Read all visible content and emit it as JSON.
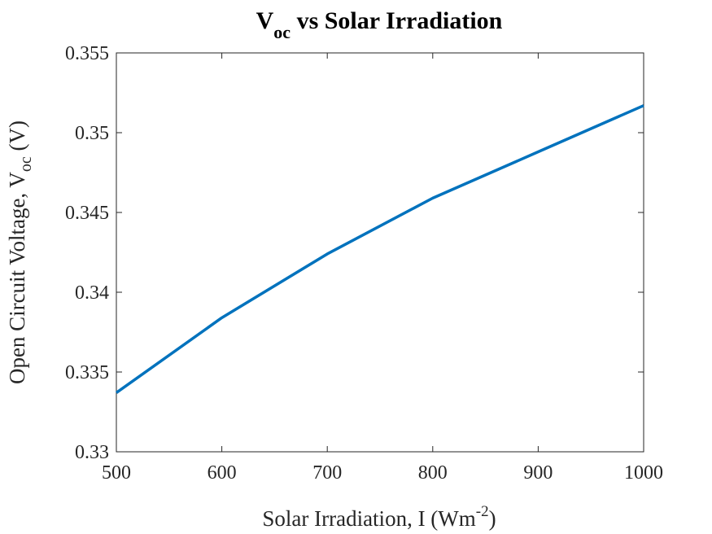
{
  "chart_data": {
    "type": "line",
    "title": {
      "main": "V",
      "subscript": "oc",
      "rest": " vs Solar Irradiation"
    },
    "xlabel": {
      "main": "Solar Irradiation, I (Wm",
      "superscript": "-2",
      "rest": ")"
    },
    "ylabel": {
      "main": "Open Circuit Voltage, V",
      "subscript": "oc",
      "rest": " (V)"
    },
    "xlim": [
      500,
      1000
    ],
    "ylim": [
      0.33,
      0.355
    ],
    "xticks": [
      500,
      600,
      700,
      800,
      900,
      1000
    ],
    "xtick_labels": [
      "500",
      "600",
      "700",
      "800",
      "900",
      "1000"
    ],
    "yticks": [
      0.33,
      0.335,
      0.34,
      0.345,
      0.35,
      0.355
    ],
    "ytick_labels": [
      "0.33",
      "0.335",
      "0.34",
      "0.345",
      "0.35",
      "0.355"
    ],
    "grid": false,
    "series": [
      {
        "color": "#0072BD",
        "x": [
          500,
          600,
          700,
          800,
          900,
          1000
        ],
        "y": [
          0.3337,
          0.3384,
          0.3424,
          0.3459,
          0.3488,
          0.3517
        ]
      }
    ]
  }
}
